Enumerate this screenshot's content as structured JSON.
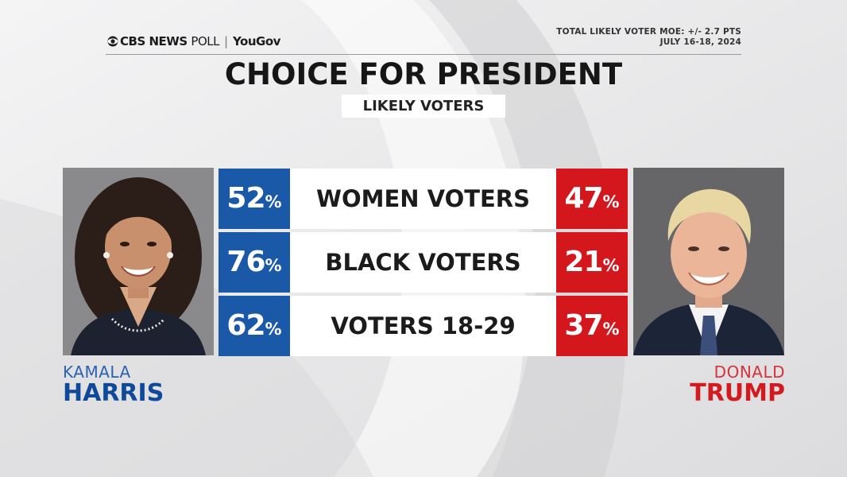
{
  "header": {
    "brand_cbs": "CBS NEWS",
    "brand_poll": "POLL",
    "brand_partner": "YouGov",
    "moe_line": "TOTAL LIKELY VOTER MOE: +/- 2.7 PTS",
    "date_line": "JULY 16-18, 2024",
    "title": "CHOICE FOR PRESIDENT",
    "subtitle": "LIKELY VOTERS"
  },
  "candidates": {
    "left": {
      "first": "KAMALA",
      "last": "HARRIS",
      "color": "#1a58a8",
      "photo_icon": "harris-portrait"
    },
    "right": {
      "first": "DONALD",
      "last": "TRUMP",
      "color": "#d4171d",
      "photo_icon": "trump-portrait"
    }
  },
  "percent_sign": "%",
  "chart_data": {
    "type": "table",
    "title": "CHOICE FOR PRESIDENT",
    "subtitle": "LIKELY VOTERS",
    "categories": [
      "WOMEN VOTERS",
      "BLACK VOTERS",
      "VOTERS 18-29"
    ],
    "series": [
      {
        "name": "HARRIS",
        "color": "#1a58a8",
        "values": [
          52,
          76,
          62
        ]
      },
      {
        "name": "TRUMP",
        "color": "#d4171d",
        "values": [
          47,
          21,
          37
        ]
      }
    ]
  }
}
